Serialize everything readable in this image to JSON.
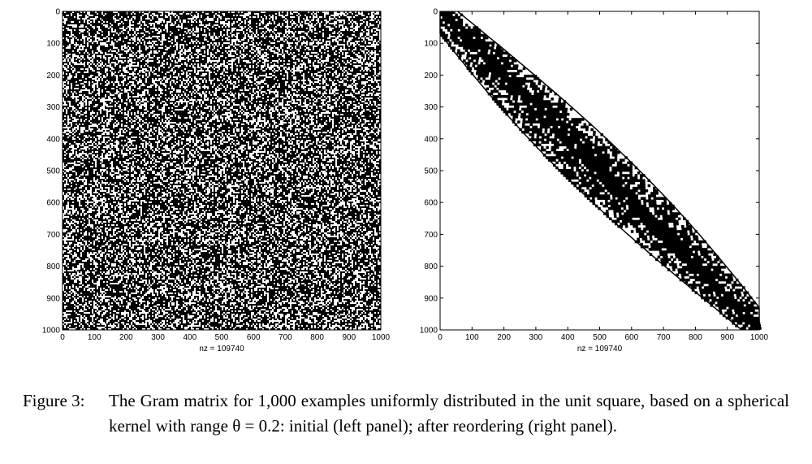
{
  "chart_data": [
    {
      "type": "heatmap",
      "subtype": "sparsity-pattern",
      "panel": "left",
      "matrix_size": 1000,
      "nonzeros": 109740,
      "pattern": "random",
      "xlabel": "nz = 109740",
      "xlim": [
        0,
        1000
      ],
      "ylim": [
        0,
        1000
      ],
      "xticks": [
        "0",
        "100",
        "200",
        "300",
        "400",
        "500",
        "600",
        "700",
        "800",
        "900",
        "1000"
      ],
      "yticks": [
        "0",
        "100",
        "200",
        "300",
        "400",
        "500",
        "600",
        "700",
        "800",
        "900",
        "1000"
      ]
    },
    {
      "type": "heatmap",
      "subtype": "sparsity-pattern",
      "panel": "right",
      "matrix_size": 1000,
      "nonzeros": 109740,
      "pattern": "banded",
      "xlabel": "nz = 109740",
      "xlim": [
        0,
        1000
      ],
      "ylim": [
        0,
        1000
      ],
      "xticks": [
        "0",
        "100",
        "200",
        "300",
        "400",
        "500",
        "600",
        "700",
        "800",
        "900",
        "1000"
      ],
      "yticks": [
        "0",
        "100",
        "200",
        "300",
        "400",
        "500",
        "600",
        "700",
        "800",
        "900",
        "1000"
      ]
    }
  ],
  "caption": {
    "label": "Figure 3:",
    "text": "The Gram matrix for 1,000 examples uniformly distributed in the unit square, based on a spherical kernel with range θ = 0.2: initial (left panel); after reordering (right panel)."
  }
}
